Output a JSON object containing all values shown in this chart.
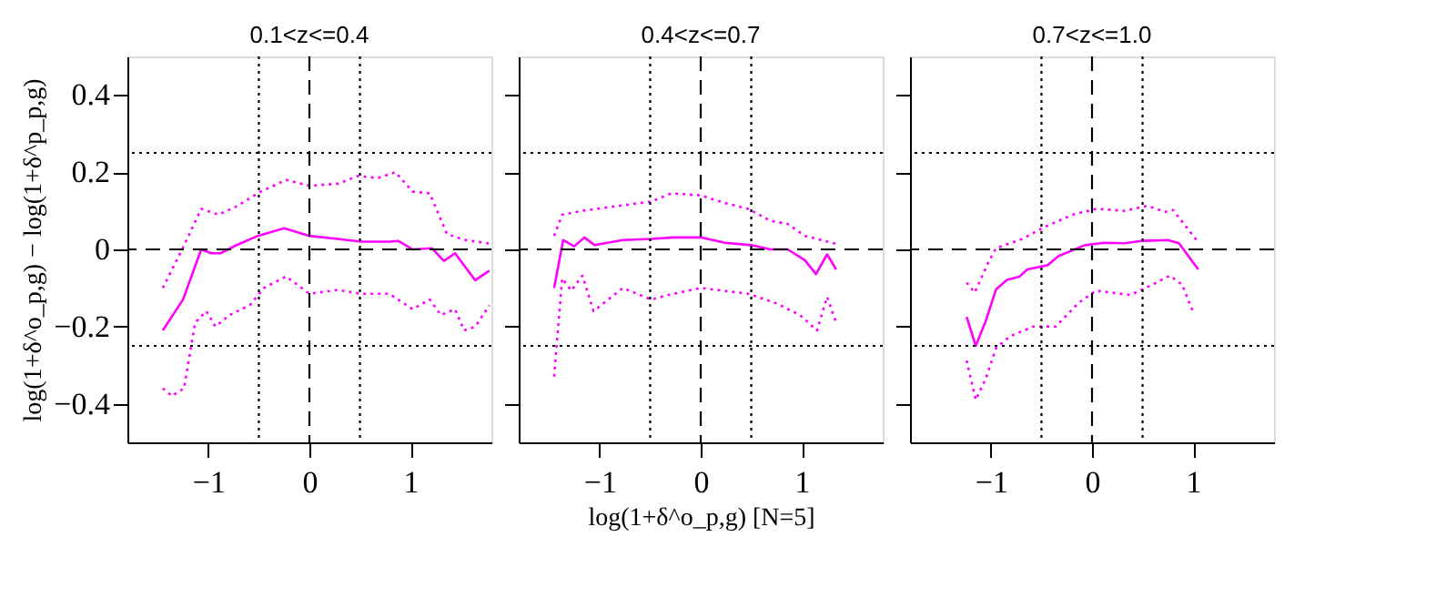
{
  "chart_data": [
    {
      "type": "line",
      "title": "0.1<z<=0.4",
      "ylabel": "log(1+δ^o_p,g) − log(1+δ^p_p,g)",
      "xlim": [
        -1.8,
        1.8
      ],
      "ylim": [
        -0.5,
        0.5
      ],
      "xticks": [
        -1,
        0,
        1
      ],
      "yticks": [
        -0.4,
        -0.2,
        0,
        0.2,
        0.4
      ],
      "grid": false,
      "marker": "none",
      "tick_labels": "xy",
      "series": [
        {
          "color": "#ff00ff",
          "line_style": "solid",
          "x": [
            -1.45,
            -1.25,
            -1.07,
            -0.97,
            -0.88,
            -0.73,
            -0.51,
            -0.25,
            0,
            0.28,
            0.51,
            0.79,
            0.88,
            1.02,
            1.21,
            1.33,
            1.44,
            1.64,
            1.78
          ],
          "values": [
            -0.21,
            -0.13,
            0.0,
            -0.01,
            -0.01,
            0.01,
            0.035,
            0.055,
            0.035,
            0.027,
            0.02,
            0.02,
            0.022,
            0.0,
            0.003,
            -0.03,
            -0.01,
            -0.08,
            -0.055
          ]
        },
        {
          "color": "#ff00ff",
          "line_style": "dotted",
          "x": [
            -1.45,
            -1.24,
            -1.07,
            -0.9,
            -0.73,
            -0.48,
            -0.23,
            0,
            0.28,
            0.48,
            0.68,
            0.85,
            1.02,
            1.19,
            1.36,
            1.53,
            1.78
          ],
          "values": [
            -0.1,
            0.01,
            0.105,
            0.09,
            0.11,
            0.15,
            0.18,
            0.165,
            0.17,
            0.19,
            0.185,
            0.2,
            0.15,
            0.145,
            0.04,
            0.025,
            0.015
          ]
        },
        {
          "color": "#ff00ff",
          "line_style": "dotted",
          "x": [
            -1.45,
            -1.36,
            -1.24,
            -1.13,
            -1.02,
            -0.93,
            -0.79,
            -0.59,
            -0.45,
            -0.23,
            0,
            0.28,
            0.51,
            0.79,
            1.02,
            1.19,
            1.3,
            1.44,
            1.53,
            1.64,
            1.78
          ],
          "values": [
            -0.36,
            -0.38,
            -0.36,
            -0.19,
            -0.16,
            -0.2,
            -0.17,
            -0.145,
            -0.1,
            -0.07,
            -0.115,
            -0.105,
            -0.115,
            -0.115,
            -0.155,
            -0.13,
            -0.17,
            -0.155,
            -0.21,
            -0.2,
            -0.145
          ]
        }
      ],
      "ref_lines": [
        {
          "axis": "y",
          "value": 0,
          "color": "#000000",
          "line_style": "dashed"
        },
        {
          "axis": "x",
          "value": 0,
          "color": "#000000",
          "line_style": "dashed"
        },
        {
          "axis": "x",
          "value": -0.5,
          "color": "#000000",
          "line_style": "dotted"
        },
        {
          "axis": "x",
          "value": 0.5,
          "color": "#000000",
          "line_style": "dotted"
        },
        {
          "axis": "y",
          "value": 0.25,
          "color": "#000000",
          "line_style": "dotted"
        },
        {
          "axis": "y",
          "value": -0.25,
          "color": "#000000",
          "line_style": "dotted"
        }
      ]
    },
    {
      "type": "line",
      "title": "0.4<z<=0.7",
      "xlabel": "log(1+δ^o_p,g) [N=5]",
      "xlim": [
        -1.8,
        1.8
      ],
      "ylim": [
        -0.5,
        0.5
      ],
      "xticks": [
        -1,
        0,
        1
      ],
      "yticks": [
        -0.4,
        -0.2,
        0,
        0.2,
        0.4
      ],
      "grid": false,
      "marker": "none",
      "tick_labels": "x",
      "series": [
        {
          "color": "#ff00ff",
          "line_style": "solid",
          "x": [
            -1.45,
            -1.36,
            -1.25,
            -1.15,
            -1.05,
            -0.77,
            -0.49,
            -0.27,
            0,
            0.24,
            0.5,
            0.69,
            0.86,
            1.03,
            1.14,
            1.25,
            1.34
          ],
          "values": [
            -0.1,
            0.024,
            0.008,
            0.031,
            0.011,
            0.024,
            0.027,
            0.031,
            0.031,
            0.017,
            0.011,
            0.0,
            0.0,
            -0.028,
            -0.064,
            -0.013,
            -0.052
          ]
        },
        {
          "color": "#ff00ff",
          "line_style": "dotted",
          "x": [
            -1.45,
            -1.37,
            -1.17,
            -0.89,
            -0.49,
            -0.29,
            0,
            0.24,
            0.47,
            0.69,
            0.86,
            1.03,
            1.34
          ],
          "values": [
            0.035,
            0.09,
            0.1,
            0.11,
            0.124,
            0.145,
            0.14,
            0.12,
            0.105,
            0.074,
            0.066,
            0.035,
            0.014
          ]
        },
        {
          "color": "#ff00ff",
          "line_style": "dotted",
          "x": [
            -1.45,
            -1.37,
            -1.28,
            -1.17,
            -1.06,
            -0.77,
            -0.49,
            -0.32,
            0,
            0.47,
            0.75,
            0.98,
            1.15,
            1.25,
            1.34
          ],
          "values": [
            -0.33,
            -0.075,
            -0.107,
            -0.068,
            -0.16,
            -0.1,
            -0.13,
            -0.118,
            -0.1,
            -0.115,
            -0.14,
            -0.17,
            -0.21,
            -0.123,
            -0.19
          ]
        }
      ],
      "ref_lines": [
        {
          "axis": "y",
          "value": 0,
          "color": "#000000",
          "line_style": "dashed"
        },
        {
          "axis": "x",
          "value": 0,
          "color": "#000000",
          "line_style": "dashed"
        },
        {
          "axis": "x",
          "value": -0.5,
          "color": "#000000",
          "line_style": "dotted"
        },
        {
          "axis": "x",
          "value": 0.5,
          "color": "#000000",
          "line_style": "dotted"
        },
        {
          "axis": "y",
          "value": 0.25,
          "color": "#000000",
          "line_style": "dotted"
        },
        {
          "axis": "y",
          "value": -0.25,
          "color": "#000000",
          "line_style": "dotted"
        }
      ]
    },
    {
      "type": "line",
      "title": "0.7<z<=1.0",
      "xlim": [
        -1.8,
        1.8
      ],
      "ylim": [
        -0.5,
        0.5
      ],
      "xticks": [
        -1,
        0,
        1
      ],
      "yticks": [
        -0.4,
        -0.2,
        0,
        0.2,
        0.4
      ],
      "grid": false,
      "marker": "none",
      "tick_labels": "x",
      "series": [
        {
          "color": "#ff00ff",
          "line_style": "solid",
          "x": [
            -1.24,
            -1.15,
            -1.05,
            -0.95,
            -0.84,
            -0.72,
            -0.64,
            -0.44,
            -0.33,
            -0.07,
            0.12,
            0.32,
            0.49,
            0.75,
            0.86,
            1.05
          ],
          "values": [
            -0.175,
            -0.25,
            -0.185,
            -0.104,
            -0.079,
            -0.071,
            -0.052,
            -0.041,
            -0.017,
            0.011,
            0.017,
            0.016,
            0.022,
            0.024,
            0.016,
            -0.052
          ]
        },
        {
          "color": "#ff00ff",
          "line_style": "dotted",
          "x": [
            -1.24,
            -1.16,
            -1.03,
            -0.95,
            -0.69,
            -0.47,
            -0.19,
            0.04,
            0.32,
            0.55,
            0.72,
            0.8,
            1.05
          ],
          "values": [
            -0.086,
            -0.112,
            -0.036,
            0.003,
            0.027,
            0.058,
            0.09,
            0.105,
            0.1,
            0.113,
            0.097,
            0.102,
            0.019
          ]
        },
        {
          "color": "#ff00ff",
          "line_style": "dotted",
          "x": [
            -1.24,
            -1.15,
            -1.05,
            -0.95,
            -0.81,
            -0.58,
            -0.36,
            -0.13,
            0.04,
            0.38,
            0.6,
            0.77,
            0.89,
            1.0
          ],
          "values": [
            -0.288,
            -0.39,
            -0.335,
            -0.256,
            -0.225,
            -0.2,
            -0.2,
            -0.138,
            -0.107,
            -0.118,
            -0.091,
            -0.068,
            -0.091,
            -0.162
          ]
        }
      ],
      "ref_lines": [
        {
          "axis": "y",
          "value": 0,
          "color": "#000000",
          "line_style": "dashed"
        },
        {
          "axis": "x",
          "value": 0,
          "color": "#000000",
          "line_style": "dashed"
        },
        {
          "axis": "x",
          "value": -0.5,
          "color": "#000000",
          "line_style": "dotted"
        },
        {
          "axis": "x",
          "value": 0.5,
          "color": "#000000",
          "line_style": "dotted"
        },
        {
          "axis": "y",
          "value": 0.25,
          "color": "#000000",
          "line_style": "dotted"
        },
        {
          "axis": "y",
          "value": -0.25,
          "color": "#000000",
          "line_style": "dotted"
        }
      ]
    }
  ]
}
